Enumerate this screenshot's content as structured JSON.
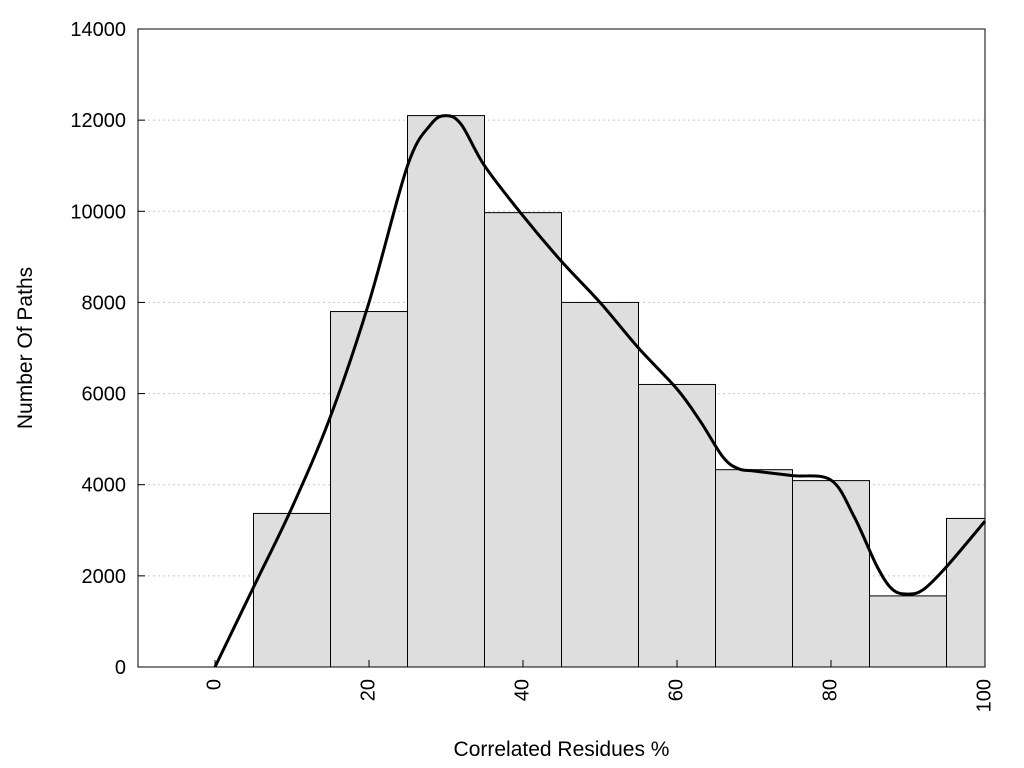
{
  "chart_data": {
    "type": "bar",
    "xlabel": "Correlated Residues %",
    "ylabel": "Number Of Paths",
    "xlim": [
      -10,
      100
    ],
    "ylim": [
      0,
      14000
    ],
    "x_ticks": [
      0,
      20,
      40,
      60,
      80,
      100
    ],
    "x_tick_labels": [
      "0",
      "20",
      "40",
      "60",
      "80",
      "100"
    ],
    "y_ticks": [
      0,
      2000,
      4000,
      6000,
      8000,
      10000,
      12000,
      14000
    ],
    "y_tick_labels": [
      "0",
      "2000",
      "4000",
      "6000",
      "8000",
      "10000",
      "12000",
      "14000"
    ],
    "grid": "horizontal-dotted",
    "legend": "none",
    "bin_width": 10,
    "bins": [
      {
        "center": 10,
        "value": 3370
      },
      {
        "center": 20,
        "value": 7800
      },
      {
        "center": 30,
        "value": 12100
      },
      {
        "center": 40,
        "value": 9970
      },
      {
        "center": 50,
        "value": 8000
      },
      {
        "center": 60,
        "value": 6200
      },
      {
        "center": 70,
        "value": 4330
      },
      {
        "center": 80,
        "value": 4090
      },
      {
        "center": 90,
        "value": 1560
      },
      {
        "center": 100,
        "value": 3260
      }
    ],
    "curve": {
      "x": [
        0,
        5,
        10,
        15,
        20,
        25,
        28,
        30,
        32,
        35,
        40,
        45,
        50,
        55,
        60,
        63,
        66,
        68,
        70,
        75,
        80,
        83,
        86,
        88,
        90,
        92,
        95,
        100
      ],
      "y": [
        0,
        1750,
        3500,
        5500,
        8000,
        11000,
        11900,
        12100,
        11900,
        11000,
        9900,
        8900,
        8000,
        7000,
        6100,
        5400,
        4600,
        4350,
        4300,
        4200,
        4100,
        3300,
        2200,
        1700,
        1600,
        1700,
        2200,
        3200
      ]
    },
    "colors": {
      "bar_fill": "#dedede",
      "bar_stroke": "#000000",
      "curve": "#000000",
      "grid": "#c8c8c8"
    }
  }
}
